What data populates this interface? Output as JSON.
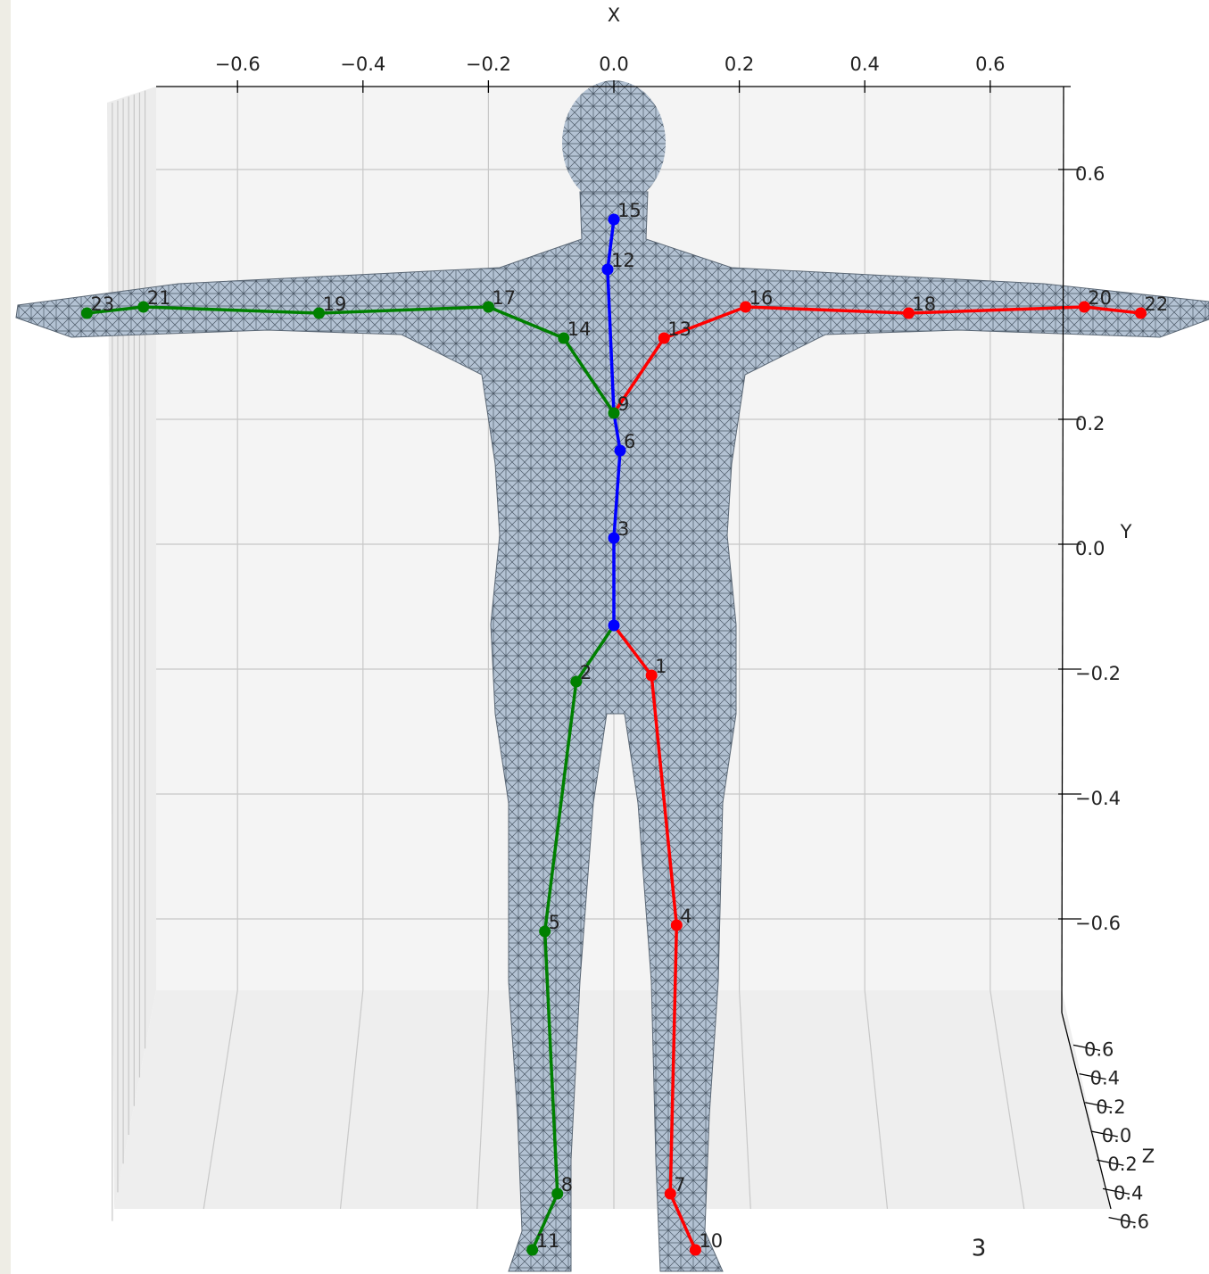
{
  "chart_data": {
    "type": "skeleton3d",
    "xlabel": "X",
    "ylabel": "Y",
    "zlabel": "Z",
    "annotation": "3",
    "xlim": [
      -0.74,
      0.73
    ],
    "xticks": [
      {
        "value": -0.6,
        "label": "−0.6"
      },
      {
        "value": -0.4,
        "label": "−0.4"
      },
      {
        "value": -0.2,
        "label": "−0.2"
      },
      {
        "value": 0,
        "label": "0.0"
      },
      {
        "value": 0.2,
        "label": "0.2"
      },
      {
        "value": 0.4,
        "label": "0.4"
      },
      {
        "value": 0.6,
        "label": "0.6"
      }
    ],
    "ylim": [
      -0.72,
      0.73
    ],
    "yticks": [
      {
        "value": 0.6,
        "label": "0.6"
      },
      {
        "value": 0.2,
        "label": "0.2"
      },
      {
        "value": 0,
        "label": "0.0"
      },
      {
        "value": -0.2,
        "label": "−0.2"
      },
      {
        "value": -0.4,
        "label": "−0.4"
      },
      {
        "value": -0.6,
        "label": "−0.6"
      }
    ],
    "zticks": [
      {
        "value": 0.6,
        "label": "0.6"
      },
      {
        "value": 0.4,
        "label": "0.4"
      },
      {
        "value": 0.2,
        "label": "0.2"
      },
      {
        "value": 0,
        "label": "0.0"
      },
      {
        "value": -0.2,
        "label": "0.2"
      },
      {
        "value": -0.4,
        "label": "0.4"
      },
      {
        "value": -0.6,
        "label": "0.6"
      }
    ],
    "grid": true,
    "joints": {
      "labels": [
        null,
        "1",
        "2",
        "3",
        "4",
        "5",
        "6",
        "7",
        "8",
        "9",
        "10",
        "11",
        "12",
        "13",
        "14",
        "15",
        "16",
        "17",
        "18",
        "19",
        "20",
        "21",
        "22",
        "23"
      ],
      "x": [
        0.0,
        0.06,
        -0.06,
        0.0,
        0.1,
        -0.11,
        0.01,
        0.09,
        -0.09,
        0.0,
        0.13,
        -0.13,
        -0.01,
        0.08,
        -0.08,
        0.0,
        0.21,
        -0.2,
        0.47,
        -0.47,
        0.75,
        -0.75,
        0.84,
        -0.84
      ],
      "y": [
        -0.13,
        -0.21,
        -0.22,
        0.01,
        -0.61,
        -0.62,
        0.15,
        -1.04,
        -1.04,
        0.21,
        -1.13,
        -1.13,
        0.44,
        0.33,
        0.33,
        0.52,
        0.38,
        0.38,
        0.37,
        0.37,
        0.38,
        0.38,
        0.37,
        0.37
      ],
      "colors": [
        "#0000ff",
        "#ff0000",
        "#008000",
        "#0000ff",
        "#ff0000",
        "#008000",
        "#0000ff",
        "#ff0000",
        "#008000",
        "#008000",
        "#ff0000",
        "#008000",
        "#0000ff",
        "#ff0000",
        "#008000",
        "#0000ff",
        "#ff0000",
        "#008000",
        "#ff0000",
        "#008000",
        "#ff0000",
        "#008000",
        "#ff0000",
        "#008000"
      ]
    },
    "bones": [
      [
        0,
        3
      ],
      [
        3,
        6
      ],
      [
        6,
        9
      ],
      [
        9,
        12
      ],
      [
        12,
        15
      ],
      [
        0,
        1
      ],
      [
        1,
        4
      ],
      [
        4,
        7
      ],
      [
        7,
        10
      ],
      [
        9,
        13
      ],
      [
        13,
        16
      ],
      [
        16,
        18
      ],
      [
        18,
        20
      ],
      [
        20,
        22
      ],
      [
        0,
        2
      ],
      [
        2,
        5
      ],
      [
        5,
        8
      ],
      [
        8,
        11
      ],
      [
        9,
        14
      ],
      [
        14,
        17
      ],
      [
        17,
        19
      ],
      [
        19,
        21
      ],
      [
        21,
        23
      ]
    ],
    "bone_colors": [
      "#0000ff",
      "#0000ff",
      "#0000ff",
      "#0000ff",
      "#0000ff",
      "#ff0000",
      "#ff0000",
      "#ff0000",
      "#ff0000",
      "#ff0000",
      "#ff0000",
      "#ff0000",
      "#ff0000",
      "#ff0000",
      "#008000",
      "#008000",
      "#008000",
      "#008000",
      "#008000",
      "#008000",
      "#008000",
      "#008000",
      "#008000"
    ]
  }
}
